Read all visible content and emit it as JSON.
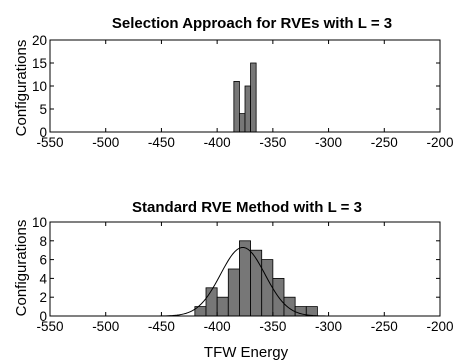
{
  "figure": {
    "xlabel": "TFW Energy"
  },
  "chart_data": [
    {
      "type": "bar",
      "title": "Selection Approach for RVEs with L = 3",
      "xlabel": "",
      "ylabel": "Configurations",
      "xlim": [
        -550,
        -200
      ],
      "ylim": [
        0,
        20
      ],
      "xticks": [
        -550,
        -500,
        -450,
        -400,
        -350,
        -300,
        -250,
        -200
      ],
      "yticks": [
        0,
        5,
        10,
        15,
        20
      ],
      "bin_width": 5,
      "bins_x": [
        -385,
        -380,
        -375,
        -370
      ],
      "values": [
        11,
        4,
        10,
        15
      ],
      "bar_color": "#777777",
      "fit_curve": false
    },
    {
      "type": "bar",
      "title": "Standard RVE Method with L = 3",
      "xlabel": "TFW Energy",
      "ylabel": "Configurations",
      "xlim": [
        -550,
        -200
      ],
      "ylim": [
        0,
        10
      ],
      "xticks": [
        -550,
        -500,
        -450,
        -400,
        -350,
        -300,
        -250,
        -200
      ],
      "yticks": [
        0,
        2,
        4,
        6,
        8,
        10
      ],
      "bin_width": 10,
      "bins_x": [
        -420,
        -410,
        -400,
        -390,
        -380,
        -370,
        -360,
        -350,
        -340,
        -330,
        -320
      ],
      "values": [
        1,
        3,
        2,
        5,
        8,
        7,
        6,
        4,
        2,
        1,
        1
      ],
      "bar_color": "#777777",
      "fit_curve": true,
      "fit": {
        "mean": -377,
        "std": 20,
        "peak": 7.3
      }
    }
  ]
}
